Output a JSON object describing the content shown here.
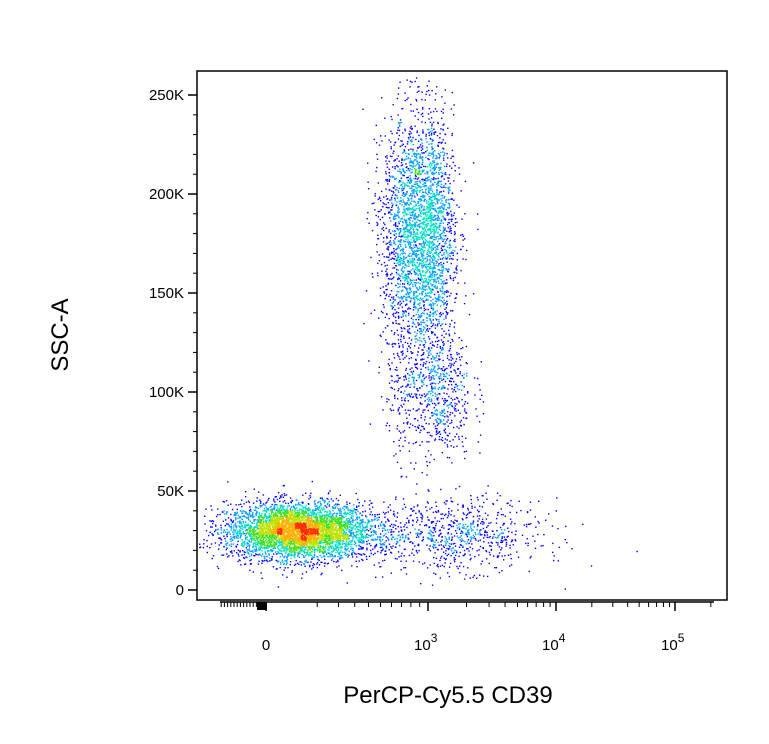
{
  "chart_data": {
    "type": "scatter",
    "plot_style": "flow-cytometry pseudocolor density dot plot",
    "xlabel": "PerCP-Cy5.5 CD39",
    "ylabel": "SSC-A",
    "x_scale": "biexponential",
    "y_scale": "linear",
    "ylim": [
      0,
      262144
    ],
    "xlim": [
      -300,
      262144
    ],
    "y_ticks": [
      {
        "value": 0,
        "label": "0"
      },
      {
        "value": 50000,
        "label": "50K"
      },
      {
        "value": 100000,
        "label": "100K"
      },
      {
        "value": 150000,
        "label": "150K"
      },
      {
        "value": 200000,
        "label": "200K"
      },
      {
        "value": 250000,
        "label": "250K"
      }
    ],
    "x_ticks": [
      {
        "value": 0,
        "base": "0",
        "exp": ""
      },
      {
        "value": 1000,
        "base": "10",
        "exp": "3"
      },
      {
        "value": 10000,
        "base": "10",
        "exp": "4"
      },
      {
        "value": 100000,
        "base": "10",
        "exp": "5"
      }
    ],
    "grid": false,
    "legend": "none",
    "colormap": [
      "#0000ff",
      "#00a0ff",
      "#00e0c0",
      "#40e020",
      "#c0e000",
      "#ffb000",
      "#ff3000"
    ],
    "populations": [
      {
        "center_x": 40,
        "center_y": 30000,
        "spread_x_decades": 0.25,
        "spread_y": 7000,
        "weight": 0.5
      },
      {
        "center_x": 900,
        "center_y": 180000,
        "spread_x_decades": 0.12,
        "spread_y": 30000,
        "weight": 0.33
      },
      {
        "center_x": 1100,
        "center_y": 100000,
        "spread_x_decades": 0.15,
        "spread_y": 18000,
        "weight": 0.08
      },
      {
        "center_x": 1500,
        "center_y": 28000,
        "spread_x_decades": 0.35,
        "spread_y": 9000,
        "weight": 0.09
      }
    ]
  }
}
